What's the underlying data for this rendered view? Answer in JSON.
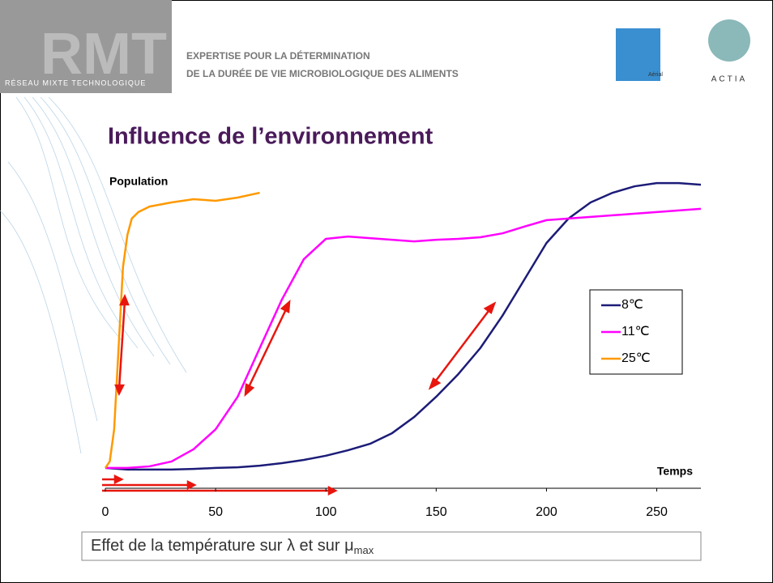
{
  "header": {
    "logo": "RMT",
    "network": "RÉSEAU MIXTE TECHNOLOGIQUE",
    "line1": "EXPERTISE POUR LA DÉTERMINATION",
    "line2": "DE LA DURÉE DE VIE MICROBIOLOGIQUE DES ALIMENTS",
    "partner1": "Aérial",
    "partner2": "ACTIA"
  },
  "chart_data": {
    "type": "line",
    "title": "Influence de l’environnement",
    "y_label": "Population",
    "x_label": "Temps",
    "xlim": [
      0,
      270
    ],
    "xticks": [
      0,
      50,
      100,
      150,
      200,
      250
    ],
    "ylim": [
      0,
      100
    ],
    "legend": "right",
    "series": [
      {
        "name": "8℃",
        "color": "#1c1c78",
        "x": [
          0,
          10,
          20,
          30,
          40,
          50,
          60,
          70,
          80,
          90,
          100,
          110,
          120,
          130,
          140,
          150,
          160,
          170,
          180,
          190,
          200,
          210,
          220,
          230,
          240,
          250,
          260,
          270
        ],
        "values": [
          6.3,
          5.8,
          5.8,
          5.8,
          6.0,
          6.3,
          6.5,
          7.0,
          7.8,
          8.8,
          10.1,
          11.8,
          13.8,
          17.1,
          22.1,
          28.4,
          35.4,
          43.5,
          53.5,
          64.8,
          76.1,
          83.7,
          88.7,
          91.7,
          93.7,
          94.7,
          94.7,
          94.2
        ]
      },
      {
        "name": "11℃",
        "color": "#ff00ff",
        "x": [
          0,
          10,
          20,
          30,
          40,
          50,
          60,
          70,
          80,
          90,
          100,
          110,
          120,
          130,
          140,
          150,
          160,
          170,
          180,
          190,
          200,
          210,
          220,
          230,
          240,
          250,
          260,
          270
        ],
        "values": [
          6.3,
          6.3,
          6.8,
          8.3,
          12.1,
          18.3,
          28.4,
          43.5,
          58.5,
          71.1,
          77.4,
          78.1,
          77.6,
          77.1,
          76.6,
          77.1,
          77.4,
          77.9,
          79.1,
          81.2,
          83.2,
          83.7,
          84.2,
          84.7,
          85.2,
          85.7,
          86.2,
          86.7
        ]
      },
      {
        "name": "25℃",
        "color": "#ff9900",
        "x": [
          0,
          2,
          4,
          6,
          8,
          10,
          12,
          15,
          20,
          30,
          40,
          50,
          60,
          70
        ],
        "values": [
          6.3,
          8.3,
          18.3,
          43.5,
          68.6,
          78.6,
          83.7,
          85.7,
          87.4,
          88.7,
          89.7,
          89.2,
          90.2,
          91.7
        ]
      }
    ]
  },
  "caption": {
    "text": "Effet de la température sur λ et sur μ",
    "subscript": "max"
  }
}
